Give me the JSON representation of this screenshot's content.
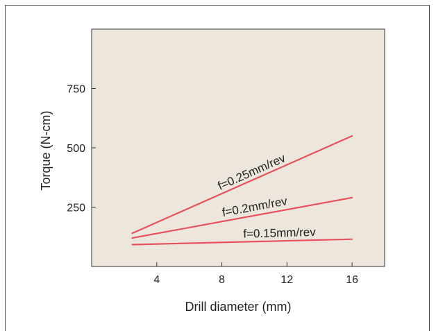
{
  "colors": {
    "plot_background": "#ede6dc",
    "line": "#e8505b",
    "axis": "#333333"
  },
  "chart_data": {
    "type": "line",
    "title": "",
    "xlabel": "Drill diameter (mm)",
    "ylabel": "Torque (N-cm)",
    "xlim": [
      0,
      18
    ],
    "ylim": [
      0,
      1000
    ],
    "xticks": [
      4,
      8,
      12,
      16
    ],
    "yticks": [
      250,
      500,
      750
    ],
    "grid": false,
    "series": [
      {
        "name": "f=0.25mm/rev",
        "x": [
          2.5,
          16
        ],
        "y": [
          140,
          550
        ]
      },
      {
        "name": "f=0.2mm/rev",
        "x": [
          2.5,
          16
        ],
        "y": [
          120,
          290
        ]
      },
      {
        "name": "f=0.15mm/rev",
        "x": [
          2.5,
          16
        ],
        "y": [
          92,
          115
        ]
      }
    ]
  }
}
